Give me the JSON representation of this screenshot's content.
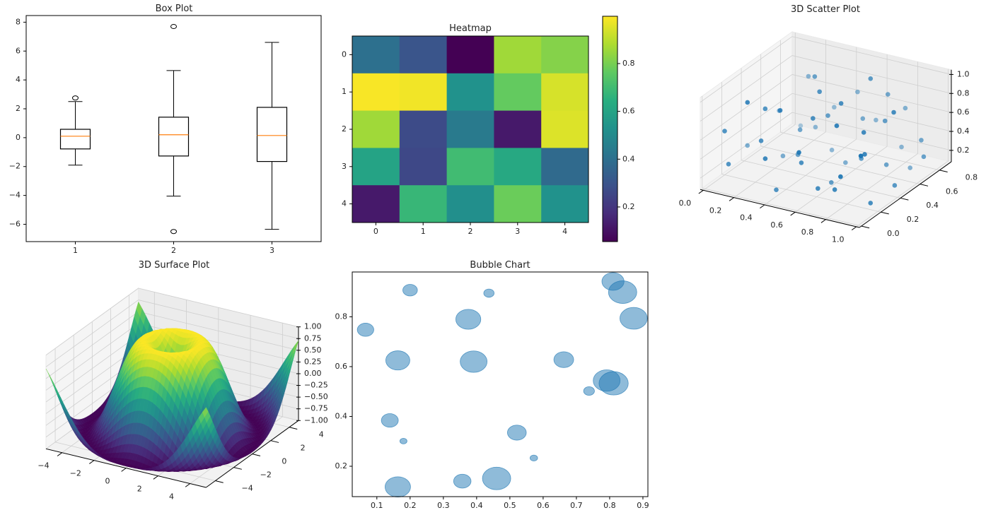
{
  "chart_data": [
    {
      "type": "box",
      "title": "Box Plot",
      "categories": [
        "1",
        "2",
        "3"
      ],
      "boxes": [
        {
          "whislo": -1.9,
          "q1": -0.78,
          "med": 0.1,
          "q3": 0.58,
          "whishi": 2.5,
          "fliers": [
            2.75
          ]
        },
        {
          "whislo": -4.05,
          "q1": -1.27,
          "med": 0.2,
          "q3": 1.42,
          "whishi": 4.65,
          "fliers": [
            7.7,
            -6.5
          ]
        },
        {
          "whislo": -6.35,
          "q1": -1.65,
          "med": 0.15,
          "q3": 2.1,
          "whishi": 6.6,
          "fliers": []
        }
      ],
      "ylim": [
        -7.2,
        8.46
      ],
      "yticks": [
        -6,
        -4,
        -2,
        0,
        2,
        4,
        6,
        8
      ],
      "ytick_labels": [
        "−6",
        "−4",
        "−2",
        "0",
        "2",
        "4",
        "6",
        "8"
      ],
      "box_color": "#000000",
      "median_color": "#ff7f0e"
    },
    {
      "type": "heatmap",
      "title": "Heatmap",
      "colormap": "viridis",
      "values": [
        [
          0.4,
          0.3,
          0.05,
          0.86,
          0.82
        ],
        [
          0.99,
          0.98,
          0.53,
          0.77,
          0.94
        ],
        [
          0.86,
          0.27,
          0.44,
          0.12,
          0.95
        ],
        [
          0.6,
          0.26,
          0.7,
          0.62,
          0.38
        ],
        [
          0.12,
          0.68,
          0.52,
          0.78,
          0.53
        ]
      ],
      "xtick_labels": [
        "0",
        "1",
        "2",
        "3",
        "4"
      ],
      "ytick_labels": [
        "0",
        "1",
        "2",
        "3",
        "4"
      ],
      "clim": [
        0.055,
        0.998
      ],
      "colorbar_ticks": [
        0.2,
        0.4,
        0.6,
        0.8
      ],
      "colorbar_tick_labels": [
        "0.2",
        "0.4",
        "0.6",
        "0.8"
      ]
    },
    {
      "type": "scatter3d",
      "title": "3D Scatter Plot",
      "color": "#1f77b4",
      "xlim": [
        -0.02,
        1.02
      ],
      "ylim": [
        -0.02,
        0.92
      ],
      "zlim": [
        0.08,
        1.05
      ],
      "xticks": [
        0.0,
        0.2,
        0.4,
        0.6,
        0.8,
        1.0
      ],
      "xtick_labels": [
        "0.0",
        "0.2",
        "0.4",
        "0.6",
        "0.8",
        "1.0"
      ],
      "yticks": [
        0.0,
        0.2,
        0.4,
        0.6,
        0.8
      ],
      "ytick_labels": [
        "0.0",
        "0.2",
        "0.4",
        "0.6",
        "0.8"
      ],
      "zticks": [
        0.2,
        0.4,
        0.6,
        0.8,
        1.0
      ],
      "ztick_labels": [
        "0.2",
        "0.4",
        "0.6",
        "0.8",
        "1.0"
      ],
      "points": [
        [
          0.05,
          0.12,
          0.62
        ],
        [
          0.12,
          0.05,
          0.35
        ],
        [
          0.2,
          0.3,
          0.78
        ],
        [
          0.25,
          0.18,
          0.55
        ],
        [
          0.3,
          0.65,
          0.9
        ],
        [
          0.35,
          0.4,
          0.28
        ],
        [
          0.4,
          0.1,
          0.15
        ],
        [
          0.45,
          0.55,
          0.62
        ],
        [
          0.5,
          0.2,
          0.4
        ],
        [
          0.55,
          0.75,
          0.48
        ],
        [
          0.6,
          0.35,
          0.12
        ],
        [
          0.65,
          0.85,
          0.7
        ],
        [
          0.7,
          0.5,
          0.3
        ],
        [
          0.75,
          0.15,
          0.25
        ],
        [
          0.8,
          0.6,
          0.2
        ],
        [
          0.85,
          0.3,
          0.55
        ],
        [
          0.9,
          0.8,
          0.35
        ],
        [
          0.95,
          0.45,
          0.15
        ],
        [
          0.98,
          0.7,
          0.28
        ],
        [
          0.1,
          0.6,
          0.5
        ],
        [
          0.15,
          0.82,
          0.72
        ],
        [
          0.22,
          0.45,
          0.18
        ],
        [
          0.28,
          0.88,
          0.4
        ],
        [
          0.33,
          0.25,
          0.85
        ],
        [
          0.38,
          0.7,
          0.12
        ],
        [
          0.42,
          0.9,
          0.6
        ],
        [
          0.48,
          0.35,
          0.75
        ],
        [
          0.52,
          0.62,
          0.1
        ],
        [
          0.58,
          0.05,
          0.65
        ],
        [
          0.62,
          0.72,
          0.95
        ],
        [
          0.68,
          0.28,
          0.8
        ],
        [
          0.72,
          0.88,
          0.15
        ],
        [
          0.78,
          0.4,
          0.68
        ],
        [
          0.82,
          0.1,
          0.45
        ],
        [
          0.88,
          0.55,
          0.82
        ],
        [
          0.92,
          0.25,
          0.1
        ],
        [
          0.02,
          0.4,
          0.25
        ],
        [
          0.08,
          0.85,
          0.15
        ],
        [
          0.18,
          0.15,
          0.95
        ],
        [
          0.26,
          0.72,
          0.3
        ],
        [
          0.36,
          0.05,
          0.5
        ],
        [
          0.44,
          0.48,
          0.92
        ],
        [
          0.54,
          0.9,
          0.35
        ],
        [
          0.64,
          0.15,
          0.22
        ],
        [
          0.74,
          0.68,
          0.58
        ],
        [
          0.84,
          0.78,
          0.05
        ],
        [
          0.94,
          0.12,
          0.7
        ],
        [
          0.3,
          0.5,
          0.45
        ],
        [
          0.6,
          0.45,
          0.88
        ],
        [
          0.7,
          0.95,
          0.5
        ]
      ]
    },
    {
      "type": "surface3d",
      "title": "3D Surface Plot",
      "function": "z = sin(sqrt(x^2 + y^2))",
      "colormap": "viridis",
      "xlim": [
        -5,
        5
      ],
      "ylim": [
        -5,
        5
      ],
      "zlim": [
        -1,
        1
      ],
      "xticks": [
        -4,
        -2,
        0,
        2,
        4
      ],
      "xtick_labels": [
        "−4",
        "−2",
        "0",
        "2",
        "4"
      ],
      "yticks": [
        -4,
        -2,
        0,
        2,
        4
      ],
      "ytick_labels": [
        "−4",
        "−2",
        "0",
        "2",
        "4"
      ],
      "zticks": [
        -1,
        -0.75,
        -0.5,
        -0.25,
        0,
        0.25,
        0.5,
        0.75,
        1
      ],
      "ztick_labels": [
        "−1.00",
        "−0.75",
        "−0.50",
        "−0.25",
        "0.00",
        "0.25",
        "0.50",
        "0.75",
        "1.00"
      ]
    },
    {
      "type": "bubble",
      "title": "Bubble Chart",
      "color": "#1f77b4",
      "alpha": 0.5,
      "xlim": [
        0.026,
        0.915
      ],
      "ylim": [
        0.078,
        0.98
      ],
      "xticks": [
        0.1,
        0.2,
        0.3,
        0.4,
        0.5,
        0.6,
        0.7,
        0.8,
        0.9
      ],
      "xtick_labels": [
        "0.1",
        "0.2",
        "0.3",
        "0.4",
        "0.5",
        "0.6",
        "0.7",
        "0.8",
        "0.9"
      ],
      "yticks": [
        0.2,
        0.4,
        0.6,
        0.8
      ],
      "ytick_labels": [
        "0.2",
        "0.4",
        "0.6",
        "0.8"
      ],
      "x": [
        0.2,
        0.437,
        0.81,
        0.839,
        0.872,
        0.066,
        0.375,
        0.163,
        0.391,
        0.662,
        0.791,
        0.812,
        0.738,
        0.139,
        0.18,
        0.521,
        0.572,
        0.163,
        0.357,
        0.46
      ],
      "y": [
        0.907,
        0.895,
        0.942,
        0.899,
        0.794,
        0.748,
        0.79,
        0.625,
        0.62,
        0.628,
        0.544,
        0.533,
        0.502,
        0.384,
        0.301,
        0.335,
        0.233,
        0.117,
        0.14,
        0.151
      ],
      "sizes": [
        335,
        169,
        771,
        1257,
        1173,
        428,
        981,
        908,
        1134,
        616,
        1134,
        1343,
        185,
        452,
        79,
        559,
        89,
        1018,
        478,
        1257
      ]
    }
  ]
}
